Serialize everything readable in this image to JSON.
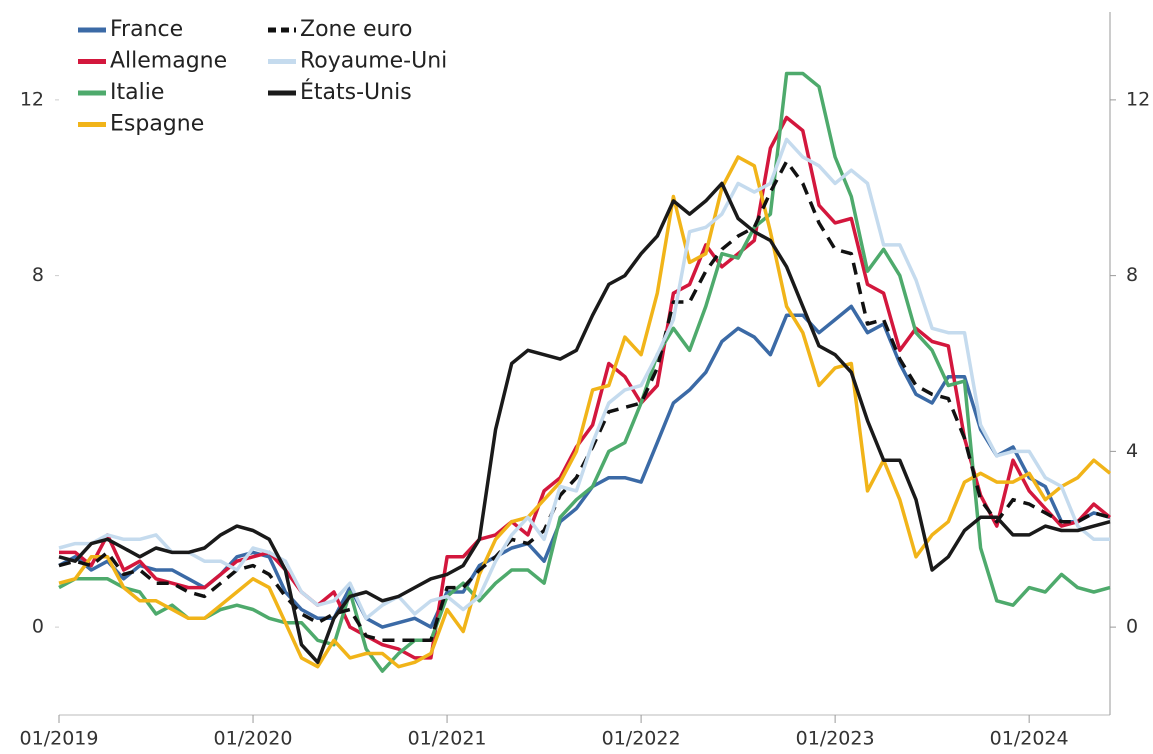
{
  "chart_data": {
    "type": "line",
    "legend": "upper left",
    "x": [
      "2019-01",
      "2019-02",
      "2019-03",
      "2019-04",
      "2019-05",
      "2019-06",
      "2019-07",
      "2019-08",
      "2019-09",
      "2019-10",
      "2019-11",
      "2019-12",
      "2020-01",
      "2020-02",
      "2020-03",
      "2020-04",
      "2020-05",
      "2020-06",
      "2020-07",
      "2020-08",
      "2020-09",
      "2020-10",
      "2020-11",
      "2020-12",
      "2021-01",
      "2021-02",
      "2021-03",
      "2021-04",
      "2021-05",
      "2021-06",
      "2021-07",
      "2021-08",
      "2021-09",
      "2021-10",
      "2021-11",
      "2021-12",
      "2022-01",
      "2022-02",
      "2022-03",
      "2022-04",
      "2022-05",
      "2022-06",
      "2022-07",
      "2022-08",
      "2022-09",
      "2022-10",
      "2022-11",
      "2022-12",
      "2023-01",
      "2023-02",
      "2023-03",
      "2023-04",
      "2023-05",
      "2023-06",
      "2023-07",
      "2023-08",
      "2023-09",
      "2023-10",
      "2023-11",
      "2023-12",
      "2024-01",
      "2024-02",
      "2024-03",
      "2024-04",
      "2024-05",
      "2024-06"
    ],
    "xlim": [
      "2019-01",
      "2024-06"
    ],
    "xticks": [
      {
        "value": "2019-01",
        "label": "01/2019"
      },
      {
        "value": "2020-01",
        "label": "01/2020"
      },
      {
        "value": "2021-01",
        "label": "01/2021"
      },
      {
        "value": "2022-01",
        "label": "01/2022"
      },
      {
        "value": "2023-01",
        "label": "01/2023"
      },
      {
        "value": "2024-01",
        "label": "01/2024"
      }
    ],
    "ylim": [
      -2,
      14
    ],
    "yticks": [
      0,
      8,
      12
    ],
    "y2lim": [
      -2,
      14
    ],
    "y2ticks": [
      0,
      4,
      8,
      12
    ],
    "series": [
      {
        "name": "France",
        "color": "#3b6aa6",
        "values": [
          1.4,
          1.6,
          1.3,
          1.5,
          1.1,
          1.4,
          1.3,
          1.3,
          1.1,
          0.9,
          1.2,
          1.6,
          1.7,
          1.6,
          0.8,
          0.4,
          0.2,
          0.2,
          0.9,
          0.2,
          0.0,
          0.1,
          0.2,
          0.0,
          0.8,
          0.8,
          1.4,
          1.6,
          1.8,
          1.9,
          1.5,
          2.4,
          2.7,
          3.2,
          3.4,
          3.4,
          3.3,
          4.2,
          5.1,
          5.4,
          5.8,
          6.5,
          6.8,
          6.6,
          6.2,
          7.1,
          7.1,
          6.7,
          7.0,
          7.3,
          6.7,
          6.9,
          6.0,
          5.3,
          5.1,
          5.7,
          5.7,
          4.5,
          3.9,
          4.1,
          3.4,
          3.2,
          2.4,
          2.4,
          2.6,
          2.5
        ]
      },
      {
        "name": "Allemagne",
        "color": "#d3173d",
        "values": [
          1.7,
          1.7,
          1.4,
          2.1,
          1.3,
          1.5,
          1.1,
          1.0,
          0.9,
          0.9,
          1.2,
          1.5,
          1.6,
          1.7,
          1.3,
          0.8,
          0.5,
          0.8,
          0.0,
          -0.2,
          -0.4,
          -0.5,
          -0.7,
          -0.7,
          1.6,
          1.6,
          2.0,
          2.1,
          2.4,
          2.1,
          3.1,
          3.4,
          4.1,
          4.6,
          6.0,
          5.7,
          5.1,
          5.5,
          7.6,
          7.8,
          8.7,
          8.2,
          8.5,
          8.8,
          10.9,
          11.6,
          11.3,
          9.6,
          9.2,
          9.3,
          7.8,
          7.6,
          6.3,
          6.8,
          6.5,
          6.4,
          4.3,
          3.0,
          2.3,
          3.8,
          3.1,
          2.7,
          2.3,
          2.4,
          2.8,
          2.5
        ]
      },
      {
        "name": "Italie",
        "color": "#4eaa6c",
        "values": [
          0.9,
          1.1,
          1.1,
          1.1,
          0.9,
          0.8,
          0.3,
          0.5,
          0.2,
          0.2,
          0.4,
          0.5,
          0.4,
          0.2,
          0.1,
          0.1,
          -0.3,
          -0.4,
          0.8,
          -0.5,
          -1.0,
          -0.6,
          -0.3,
          -0.3,
          0.7,
          1.0,
          0.6,
          1.0,
          1.3,
          1.3,
          1.0,
          2.5,
          2.9,
          3.2,
          4.0,
          4.2,
          5.1,
          6.2,
          6.8,
          6.3,
          7.3,
          8.5,
          8.4,
          9.1,
          9.4,
          12.6,
          12.6,
          12.3,
          10.7,
          9.8,
          8.1,
          8.6,
          8.0,
          6.7,
          6.3,
          5.5,
          5.6,
          1.8,
          0.6,
          0.5,
          0.9,
          0.8,
          1.2,
          0.9,
          0.8,
          0.9
        ]
      },
      {
        "name": "Espagne",
        "color": "#f1b419",
        "values": [
          1.0,
          1.1,
          1.6,
          1.6,
          0.9,
          0.6,
          0.6,
          0.4,
          0.2,
          0.2,
          0.5,
          0.8,
          1.1,
          0.9,
          0.1,
          -0.7,
          -0.9,
          -0.3,
          -0.7,
          -0.6,
          -0.6,
          -0.9,
          -0.8,
          -0.6,
          0.4,
          -0.1,
          1.2,
          2.0,
          2.4,
          2.5,
          2.9,
          3.3,
          4.0,
          5.4,
          5.5,
          6.6,
          6.2,
          7.6,
          9.8,
          8.3,
          8.5,
          10.0,
          10.7,
          10.5,
          9.0,
          7.3,
          6.7,
          5.5,
          5.9,
          6.0,
          3.1,
          3.8,
          2.9,
          1.6,
          2.1,
          2.4,
          3.3,
          3.5,
          3.3,
          3.3,
          3.5,
          2.9,
          3.2,
          3.4,
          3.8,
          3.5
        ]
      },
      {
        "name": "Zone euro",
        "color": "#111111",
        "dashed": true,
        "values": [
          1.4,
          1.5,
          1.4,
          1.7,
          1.2,
          1.3,
          1.0,
          1.0,
          0.8,
          0.7,
          1.0,
          1.3,
          1.4,
          1.2,
          0.7,
          0.3,
          0.1,
          0.3,
          0.4,
          -0.2,
          -0.3,
          -0.3,
          -0.3,
          -0.3,
          0.9,
          0.9,
          1.3,
          1.6,
          2.0,
          1.9,
          2.2,
          3.0,
          3.4,
          4.1,
          4.9,
          5.0,
          5.1,
          5.9,
          7.4,
          7.4,
          8.1,
          8.6,
          8.9,
          9.1,
          9.9,
          10.6,
          10.1,
          9.2,
          8.6,
          8.5,
          6.9,
          7.0,
          6.1,
          5.5,
          5.3,
          5.2,
          4.3,
          2.9,
          2.4,
          2.9,
          2.8,
          2.6,
          2.4,
          2.4,
          2.6,
          2.5
        ]
      },
      {
        "name": "Royaume-Uni",
        "color": "#c5dbee",
        "values": [
          1.8,
          1.9,
          1.9,
          2.1,
          2.0,
          2.0,
          2.1,
          1.7,
          1.7,
          1.5,
          1.5,
          1.3,
          1.8,
          1.7,
          1.5,
          0.8,
          0.5,
          0.6,
          1.0,
          0.2,
          0.5,
          0.7,
          0.3,
          0.6,
          0.7,
          0.4,
          0.7,
          1.5,
          2.1,
          2.5,
          2.0,
          3.2,
          3.1,
          4.2,
          5.1,
          5.4,
          5.5,
          6.2,
          7.0,
          9.0,
          9.1,
          9.4,
          10.1,
          9.9,
          10.1,
          11.1,
          10.7,
          10.5,
          10.1,
          10.4,
          10.1,
          8.7,
          8.7,
          7.9,
          6.8,
          6.7,
          6.7,
          4.6,
          3.9,
          4.0,
          4.0,
          3.4,
          3.2,
          2.3,
          2.0,
          2.0
        ]
      },
      {
        "name": "États-Unis",
        "color": "#1a1a1a",
        "values": [
          1.6,
          1.5,
          1.9,
          2.0,
          1.8,
          1.6,
          1.8,
          1.7,
          1.7,
          1.8,
          2.1,
          2.3,
          2.2,
          2.0,
          1.3,
          -0.4,
          -0.8,
          0.2,
          0.7,
          0.8,
          0.6,
          0.7,
          0.9,
          1.1,
          1.2,
          1.4,
          2.0,
          4.5,
          6.0,
          6.3,
          6.2,
          6.1,
          6.3,
          7.1,
          7.8,
          8.0,
          8.5,
          8.9,
          9.7,
          9.4,
          9.7,
          10.1,
          9.3,
          9.0,
          8.8,
          8.2,
          7.3,
          6.4,
          6.2,
          5.8,
          4.7,
          3.8,
          3.8,
          2.9,
          1.3,
          1.6,
          2.2,
          2.5,
          2.5,
          2.1,
          2.1,
          2.3,
          2.2,
          2.2,
          2.3,
          2.4
        ]
      }
    ]
  }
}
